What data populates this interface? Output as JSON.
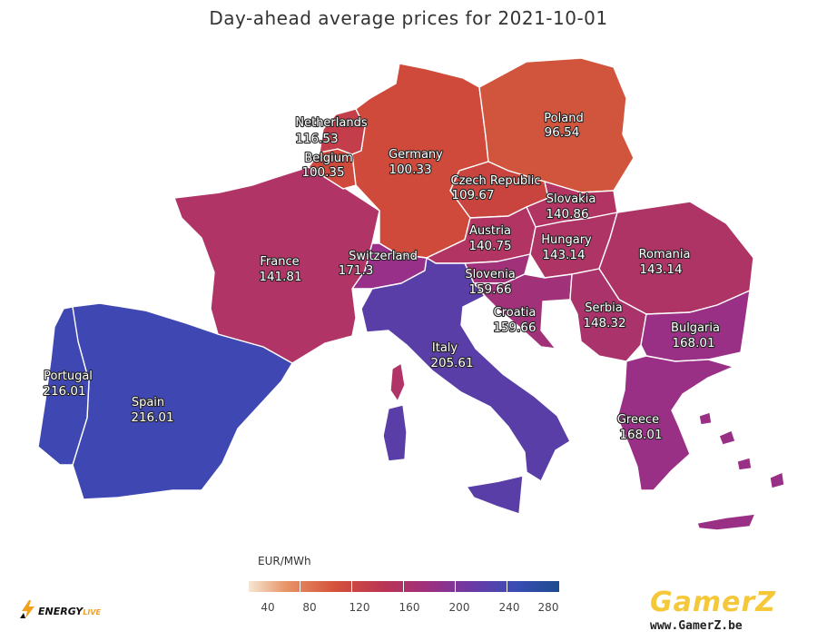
{
  "title": "Day-ahead average prices for 2021-10-01",
  "legend": {
    "title": "EUR/MWh",
    "ticks": [
      "40",
      "80",
      "120",
      "160",
      "200",
      "240",
      "280"
    ]
  },
  "countries": {
    "netherlands": {
      "name": "Netherlands",
      "price": "116.53",
      "color": "#c33e4a"
    },
    "belgium": {
      "name": "Belgium",
      "price": "100.35",
      "color": "#cf4a3d"
    },
    "germany": {
      "name": "Germany",
      "price": "100.33",
      "color": "#cf4a3b"
    },
    "poland": {
      "name": "Poland",
      "price": "96.54",
      "color": "#d1553d"
    },
    "czech_republic": {
      "name": "Czech Republic",
      "price": "109.67",
      "color": "#c9443f"
    },
    "slovakia": {
      "name": "Slovakia",
      "price": "140.86",
      "color": "#b23463"
    },
    "austria": {
      "name": "Austria",
      "price": "140.75",
      "color": "#b23463"
    },
    "hungary": {
      "name": "Hungary",
      "price": "143.14",
      "color": "#ae3466"
    },
    "romania": {
      "name": "Romania",
      "price": "143.14",
      "color": "#ae3466"
    },
    "france": {
      "name": "France",
      "price": "141.81",
      "color": "#b03466"
    },
    "switzerland": {
      "name": "Switzerland",
      "price": "171.3",
      "color": "#98308a"
    },
    "slovenia": {
      "name": "Slovenia",
      "price": "159.66",
      "color": "#a13279"
    },
    "croatia": {
      "name": "Croatia",
      "price": "159.66",
      "color": "#a13279"
    },
    "serbia": {
      "name": "Serbia",
      "price": "148.32",
      "color": "#aa336c"
    },
    "bulgaria": {
      "name": "Bulgaria",
      "price": "168.01",
      "color": "#9a3086"
    },
    "italy": {
      "name": "Italy",
      "price": "205.61",
      "color": "#5a3ea8"
    },
    "greece": {
      "name": "Greece",
      "price": "168.01",
      "color": "#9a3086"
    },
    "portugal": {
      "name": "Portugal",
      "price": "216.01",
      "color": "#3f48b2"
    },
    "spain": {
      "name": "Spain",
      "price": "216.01",
      "color": "#3f48b2"
    }
  },
  "logos": {
    "left": {
      "word": "ENERGY",
      "suffix": "LIVE"
    },
    "right": {
      "brand": "GamerZ",
      "url": "www.GamerZ.be"
    }
  }
}
